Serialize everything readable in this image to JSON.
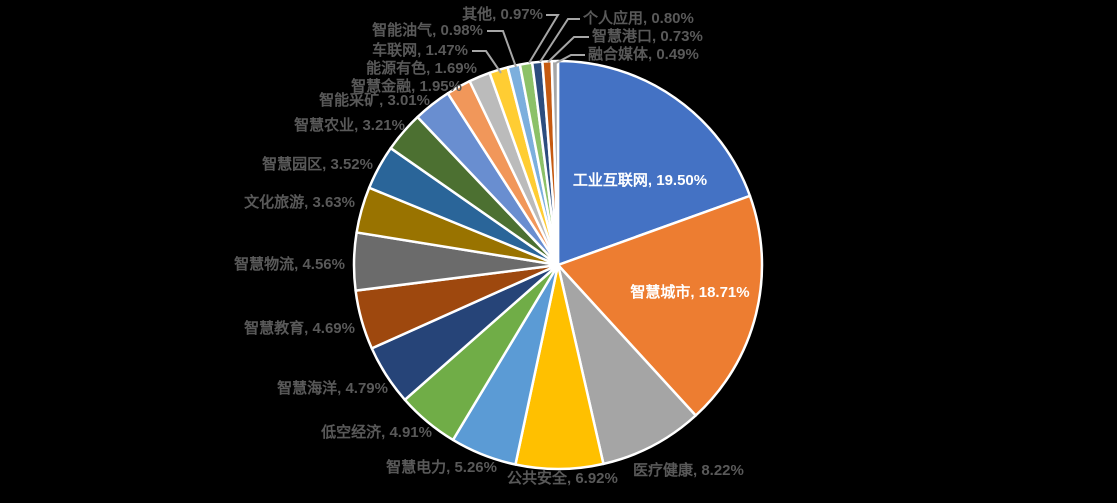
{
  "chart_data": {
    "type": "pie",
    "title": "",
    "legend_position": "none",
    "background_color": "#000000",
    "slice_border_color": "#ffffff",
    "leader_line_color": "#a6a6a6",
    "outside_label_color": "#595959",
    "inside_label_color": "#ffffff",
    "label_format": "{category}, {value}%",
    "start_angle_deg": 0,
    "direction": "clockwise",
    "slices": [
      {
        "label": "工业互联网",
        "value": 19.5,
        "display": "工业互联网, 19.50%",
        "color": "#4472C4",
        "label_placement": "inside"
      },
      {
        "label": "智慧城市",
        "value": 18.71,
        "display": "智慧城市, 18.71%",
        "color": "#ED7D31",
        "label_placement": "inside"
      },
      {
        "label": "医疗健康",
        "value": 8.22,
        "display": "医疗健康, 8.22%",
        "color": "#A5A5A5",
        "label_placement": "outside"
      },
      {
        "label": "公共安全",
        "value": 6.92,
        "display": "公共安全, 6.92%",
        "color": "#FFC000",
        "label_placement": "outside"
      },
      {
        "label": "智慧电力",
        "value": 5.26,
        "display": "智慧电力, 5.26%",
        "color": "#5B9BD5",
        "label_placement": "outside"
      },
      {
        "label": "低空经济",
        "value": 4.91,
        "display": "低空经济, 4.91%",
        "color": "#70AD47",
        "label_placement": "outside"
      },
      {
        "label": "智慧海洋",
        "value": 4.79,
        "display": "智慧海洋, 4.79%",
        "color": "#264478",
        "label_placement": "outside"
      },
      {
        "label": "智慧教育",
        "value": 4.69,
        "display": "智慧教育, 4.69%",
        "color": "#9E480E",
        "label_placement": "outside"
      },
      {
        "label": "智慧物流",
        "value": 4.56,
        "display": "智慧物流, 4.56%",
        "color": "#6B6B6B",
        "label_placement": "outside"
      },
      {
        "label": "文化旅游",
        "value": 3.63,
        "display": "文化旅游, 3.63%",
        "color": "#997300",
        "label_placement": "outside"
      },
      {
        "label": "智慧园区",
        "value": 3.52,
        "display": "智慧园区, 3.52%",
        "color": "#2A6599",
        "label_placement": "outside"
      },
      {
        "label": "智慧农业",
        "value": 3.21,
        "display": "智慧农业, 3.21%",
        "color": "#4C7031",
        "label_placement": "outside"
      },
      {
        "label": "智能采矿",
        "value": 3.01,
        "display": "智能采矿, 3.01%",
        "color": "#698ED0",
        "label_placement": "outside"
      },
      {
        "label": "智慧金融",
        "value": 1.95,
        "display": "智慧金融, 1.95%",
        "color": "#F1975A",
        "label_placement": "outside"
      },
      {
        "label": "能源有色",
        "value": 1.69,
        "display": "能源有色, 1.69%",
        "color": "#BBBBBB",
        "label_placement": "outside"
      },
      {
        "label": "车联网",
        "value": 1.47,
        "display": "车联网, 1.47%",
        "color": "#FFCD33",
        "label_placement": "outside"
      },
      {
        "label": "智能油气",
        "value": 0.98,
        "display": "智能油气, 0.98%",
        "color": "#7CAFDD",
        "label_placement": "outside"
      },
      {
        "label": "其他",
        "value": 0.97,
        "display": "其他, 0.97%",
        "color": "#8CC168",
        "label_placement": "outside"
      },
      {
        "label": "个人应用",
        "value": 0.8,
        "display": "个人应用, 0.80%",
        "color": "#2C4D7E",
        "label_placement": "outside"
      },
      {
        "label": "智慧港口",
        "value": 0.73,
        "display": "智慧港口, 0.73%",
        "color": "#C55A11",
        "label_placement": "outside"
      },
      {
        "label": "融合媒体",
        "value": 0.49,
        "display": "融合媒体, 0.49%",
        "color": "#A6A6A6",
        "label_placement": "outside"
      }
    ]
  }
}
